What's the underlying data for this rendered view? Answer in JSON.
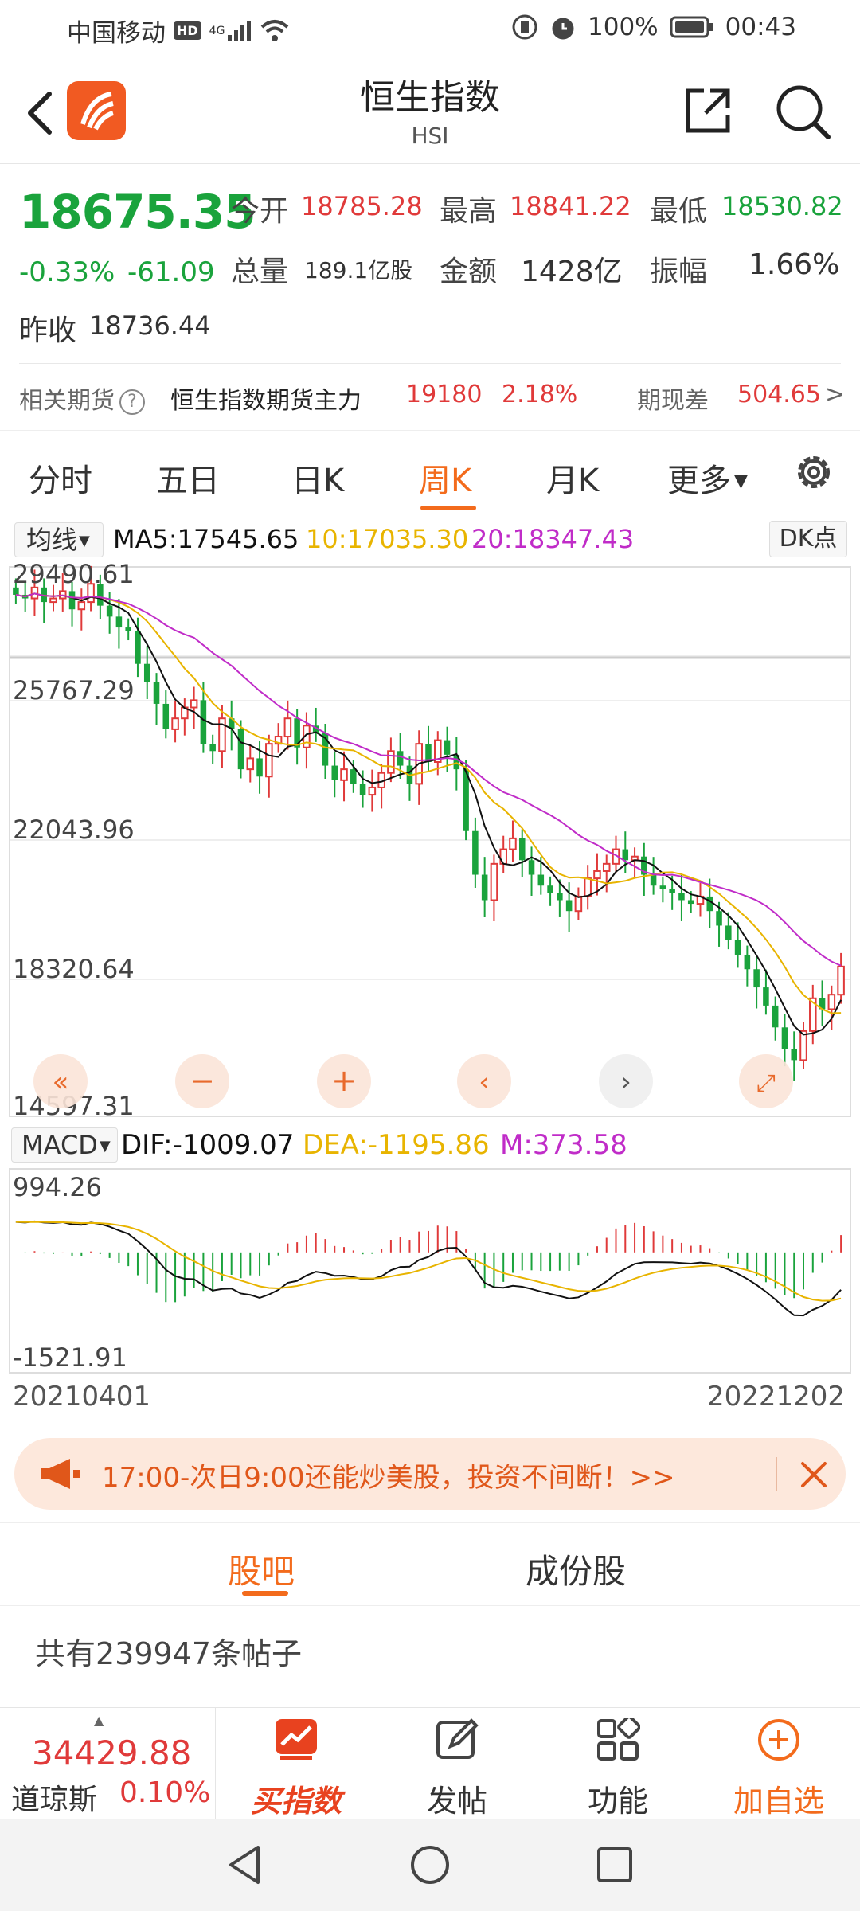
{
  "status_bar": {
    "carrier": "中国移动",
    "hd": "HD",
    "net": "4G",
    "battery": "100%",
    "time": "00:43"
  },
  "header": {
    "title": "恒生指数",
    "subtitle": "HSI",
    "icons": [
      "back-icon",
      "app-logo-icon",
      "share-icon",
      "search-icon"
    ]
  },
  "quote": {
    "price": "18675.35",
    "change_pct": "-0.33%",
    "change_abs": "-61.09",
    "prev_close_label": "昨收",
    "prev_close": "18736.44",
    "open_label": "今开",
    "open": "18785.28",
    "high_label": "最高",
    "high": "18841.22",
    "low_label": "最低",
    "low": "18530.82",
    "volume_label": "总量",
    "volume": "189.1亿股",
    "amount_label": "金额",
    "amount": "1428亿",
    "amplitude_label": "振幅",
    "amplitude": "1.66%"
  },
  "futures": {
    "label": "相关期货",
    "name": "恒生指数期货主力",
    "price": "19180",
    "pct": "2.18%",
    "basis_label": "期现差",
    "basis": "504.65",
    "arrow": ">"
  },
  "tabs": [
    "分时",
    "五日",
    "日K",
    "周K",
    "月K",
    "更多"
  ],
  "active_tab": "周K",
  "indicator": {
    "selector": "均线",
    "ma5": "MA5:17545.65",
    "ma10": "10:17035.30",
    "ma20": "20:18347.43",
    "dk_button": "DK点"
  },
  "macd": {
    "selector": "MACD",
    "dif": "DIF:-1009.07",
    "dea": "DEA:-1195.86",
    "m": "M:373.58"
  },
  "colors": {
    "up": "#e03a3a",
    "down": "#1aa33c",
    "ma5": "#111111",
    "ma10": "#e8b400",
    "ma20": "#c02cc8",
    "accent": "#f36b1c"
  },
  "chart_data": [
    {
      "type": "candlestick",
      "title": "",
      "y_tick_labels": [
        "29490.61",
        "25767.29",
        "22043.96",
        "18320.64",
        "14597.31"
      ],
      "y_ticks": [
        29490.61,
        25767.29,
        22043.96,
        18320.64,
        14597.31
      ],
      "ylim": [
        14597.31,
        29490.61
      ],
      "x_start_label": "20210401",
      "x_end_label": "20221202",
      "series": [
        {
          "name": "MA5"
        },
        {
          "name": "10"
        },
        {
          "name": "20"
        }
      ],
      "close_approx": [
        28900,
        28800,
        29100,
        28700,
        28800,
        29000,
        28500,
        28700,
        29200,
        28600,
        28300,
        28000,
        27900,
        27000,
        26500,
        25900,
        25200,
        25500,
        25800,
        26000,
        24800,
        24600,
        25500,
        25200,
        24100,
        24400,
        23900,
        24800,
        25000,
        25500,
        24700,
        25300,
        25100,
        24200,
        23800,
        24100,
        23700,
        23400,
        23600,
        24000,
        24600,
        24200,
        23700,
        24800,
        24300,
        24900,
        24500,
        24100,
        22400,
        21200,
        20500,
        21500,
        21900,
        22200,
        21600,
        21200,
        20900,
        20700,
        20500,
        20200,
        20600,
        21100,
        21300,
        21500,
        21900,
        21600,
        21700,
        21200,
        20900,
        20800,
        20700,
        20500,
        20400,
        20600,
        20200,
        19800,
        19400,
        19000,
        18600,
        18100,
        17600,
        17000,
        16400,
        16100,
        16900,
        17800,
        17500,
        17900,
        18675
      ]
    },
    {
      "type": "bar",
      "title": "MACD",
      "y_tick_labels": [
        "994.26",
        "-1521.91"
      ],
      "ylim": [
        -1521.91,
        994.26
      ]
    }
  ],
  "banner": {
    "text": "17:00-次日9:00还能炒美股，投资不间断！>>",
    "icons": [
      "megaphone-icon",
      "close-icon"
    ]
  },
  "lower_tabs": [
    "股吧",
    "成份股"
  ],
  "posts_text": "共有239947条帖子",
  "bottom_nav": {
    "ticker_value": "34429.88",
    "ticker_name": "道琼斯",
    "ticker_pct": "0.10%",
    "items": [
      "买指数",
      "发帖",
      "功能",
      "加自选"
    ]
  }
}
